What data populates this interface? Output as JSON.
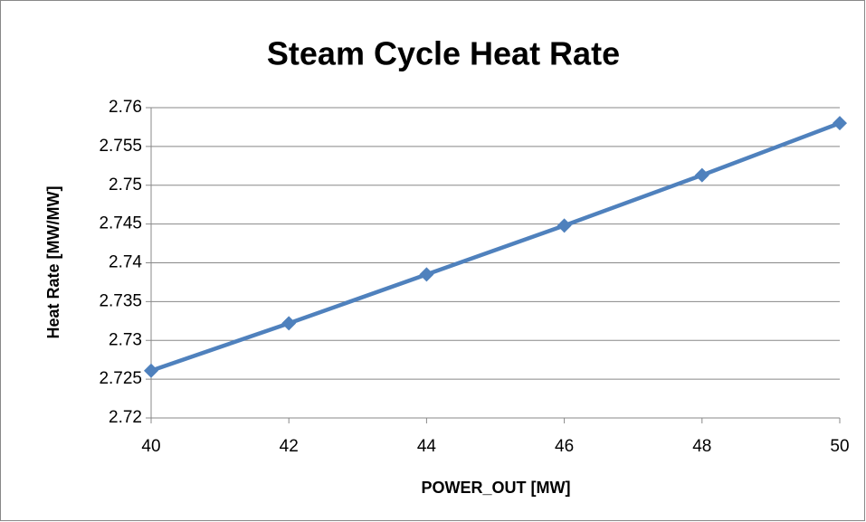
{
  "chart_data": {
    "type": "line",
    "title": "Steam Cycle Heat Rate",
    "x_label": "POWER_OUT [MW]",
    "y_label": "Heat Rate [MW/MW]",
    "x": [
      40,
      42,
      44,
      46,
      48,
      50
    ],
    "series": [
      {
        "name": "Heat Rate",
        "color": "#4f81bd",
        "values": [
          2.7261,
          2.7322,
          2.7385,
          2.7448,
          2.7513,
          2.758
        ]
      }
    ],
    "xlim": [
      40,
      50
    ],
    "xticks": [
      40,
      42,
      44,
      46,
      48,
      50
    ],
    "ylim": [
      2.72,
      2.76
    ],
    "yticks": [
      2.72,
      2.725,
      2.73,
      2.735,
      2.74,
      2.745,
      2.75,
      2.755,
      2.76
    ],
    "grid": true,
    "marker": "diamond",
    "legend": false
  }
}
